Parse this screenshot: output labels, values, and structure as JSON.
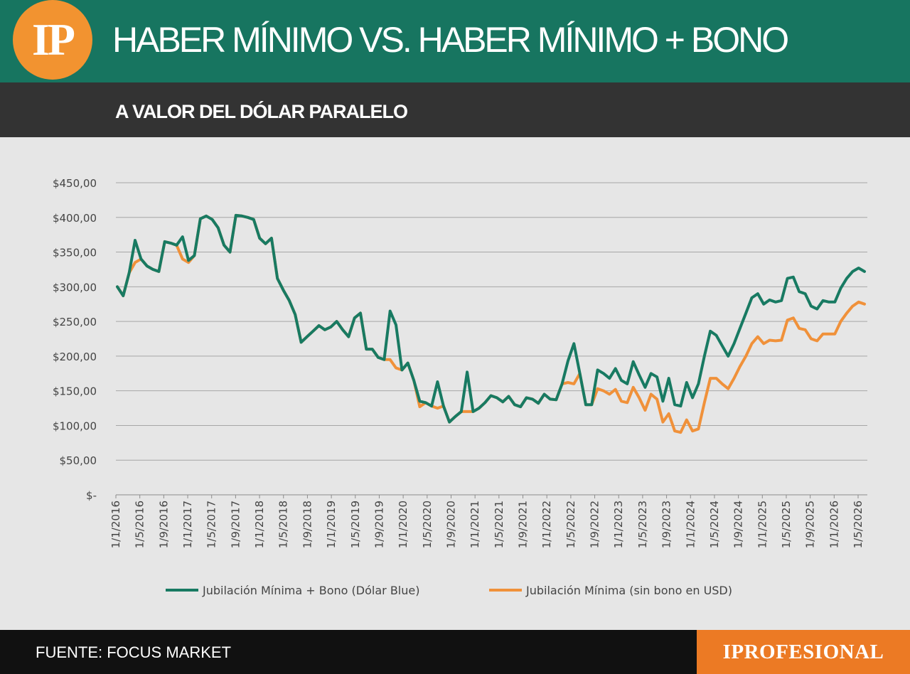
{
  "header": {
    "logo_text": "IP",
    "title": "HABER MÍNIMO VS. HABER MÍNIMO + BONO",
    "subtitle": "A VALOR DEL DÓLAR PARALELO"
  },
  "footer": {
    "source": "FUENTE: FOCUS MARKET",
    "brand": "IPROFESIONAL"
  },
  "colors": {
    "header_green": "#177560",
    "logo_orange": "#f29330",
    "series_bono": "#187a62",
    "series_sin_bono": "#f0913a"
  },
  "chart_data": {
    "type": "line",
    "title": "HABER MÍNIMO VS. HABER MÍNIMO + BONO",
    "subtitle": "A VALOR DEL DÓLAR PARALELO",
    "ylim": [
      0,
      450
    ],
    "y_ticks": [
      0,
      50,
      100,
      150,
      200,
      250,
      300,
      350,
      400,
      450
    ],
    "y_tick_labels": [
      "$-",
      "$50,00",
      "$100,00",
      "$150,00",
      "$200,00",
      "$250,00",
      "$300,00",
      "$350,00",
      "$400,00",
      "$450,00"
    ],
    "x_tick_labels": [
      "1/1/2016",
      "1/5/2016",
      "1/9/2016",
      "1/1/2017",
      "1/5/2017",
      "1/9/2017",
      "1/1/2018",
      "1/5/2018",
      "1/9/2018",
      "1/1/2019",
      "1/5/2019",
      "1/9/2019",
      "1/1/2020",
      "1/5/2020",
      "1/9/2020",
      "1/1/2021",
      "1/5/2021",
      "1/9/2021",
      "1/1/2022",
      "1/5/2022",
      "1/9/2022",
      "1/1/2023",
      "1/5/2023",
      "1/9/2023",
      "1/1/2024",
      "1/5/2024",
      "1/9/2024",
      "1/1/2025",
      "1/5/2025",
      "1/9/2025",
      "1/1/2026",
      "1/5/2026"
    ],
    "grid": true,
    "legend_position": "bottom",
    "series": [
      {
        "name": "Jubilación Mínima + Bono (Dólar Blue)",
        "color": "#187a62",
        "values": [
          300,
          287,
          320,
          367,
          340,
          330,
          325,
          322,
          365,
          363,
          360,
          372,
          338,
          345,
          398,
          402,
          397,
          385,
          360,
          350,
          403,
          402,
          400,
          397,
          370,
          362,
          370,
          312,
          295,
          280,
          260,
          220,
          228,
          236,
          244,
          238,
          242,
          250,
          238,
          228,
          255,
          262,
          210,
          210,
          198,
          195,
          265,
          245,
          180,
          190,
          165,
          135,
          133,
          128,
          163,
          128,
          105,
          113,
          120,
          177,
          120,
          125,
          133,
          143,
          140,
          134,
          142,
          130,
          127,
          140,
          138,
          132,
          145,
          138,
          137,
          160,
          193,
          218,
          175,
          130,
          130,
          180,
          175,
          168,
          182,
          165,
          160,
          192,
          173,
          155,
          175,
          170,
          135,
          168,
          130,
          128,
          162,
          140,
          160,
          200,
          236,
          230,
          215,
          200,
          218,
          240,
          262,
          284,
          290,
          275,
          281,
          278,
          280,
          312,
          314,
          293,
          290,
          272,
          268,
          280,
          278,
          278,
          298,
          312,
          322,
          327,
          322
        ]
      },
      {
        "name": "Jubilación Mínima (sin bono en USD)",
        "color": "#f0913a",
        "values": [
          300,
          287,
          320,
          335,
          340,
          330,
          325,
          322,
          365,
          363,
          360,
          340,
          335,
          345,
          398,
          402,
          397,
          385,
          360,
          350,
          403,
          402,
          400,
          397,
          370,
          362,
          370,
          312,
          295,
          280,
          260,
          220,
          228,
          236,
          244,
          238,
          242,
          250,
          238,
          228,
          255,
          262,
          210,
          210,
          198,
          195,
          195,
          183,
          180,
          190,
          165,
          127,
          133,
          128,
          125,
          128,
          105,
          113,
          120,
          120,
          120,
          125,
          133,
          143,
          140,
          134,
          142,
          130,
          127,
          140,
          138,
          132,
          145,
          138,
          137,
          160,
          162,
          160,
          175,
          130,
          130,
          153,
          150,
          145,
          152,
          135,
          133,
          155,
          140,
          122,
          145,
          138,
          105,
          117,
          92,
          90,
          108,
          92,
          95,
          133,
          168,
          168,
          160,
          153,
          168,
          185,
          200,
          218,
          228,
          218,
          223,
          222,
          223,
          252,
          255,
          240,
          238,
          225,
          222,
          232,
          232,
          232,
          250,
          262,
          272,
          278,
          275
        ]
      }
    ]
  }
}
